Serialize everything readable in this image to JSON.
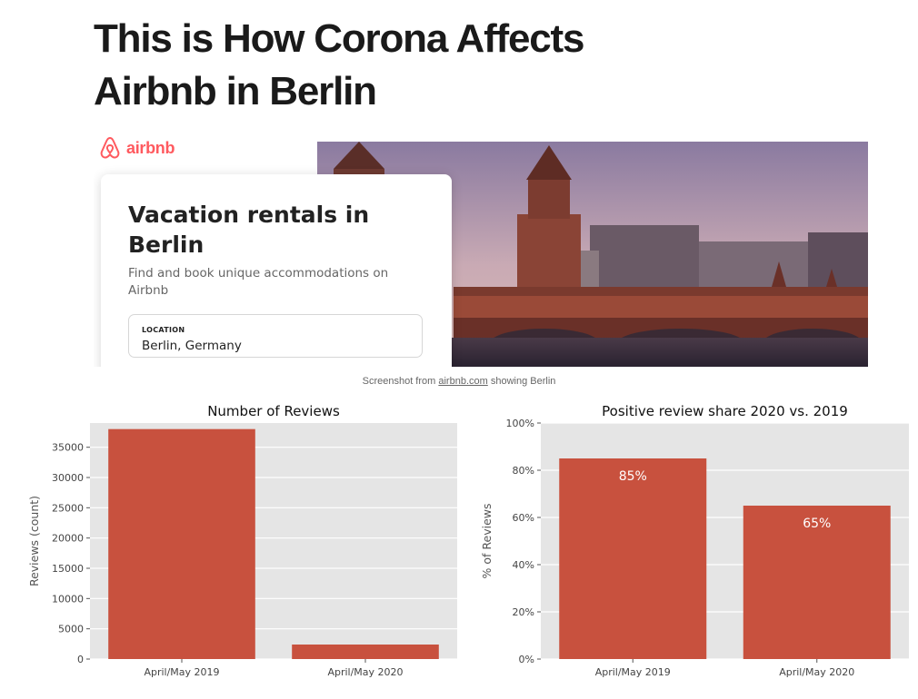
{
  "article": {
    "title_line1": "This is How Corona Affects",
    "title_line2": "Airbnb in Berlin"
  },
  "screenshot": {
    "logo_icon": "airbnb-belo-logo",
    "logo_text": "airbnb",
    "brand_color": "#ff5a5f",
    "card_title_line1": "Vacation rentals in",
    "card_title_line2": "Berlin",
    "card_subtitle_line1": "Find and book unique accommodations on",
    "card_subtitle_line2": "Airbnb",
    "location_label": "LOCATION",
    "location_value": "Berlin, Germany"
  },
  "caption": {
    "prefix": "Screenshot from ",
    "link": "airbnb.com",
    "suffix": " showing Berlin"
  },
  "colors": {
    "bar": "#c8513e",
    "plot_bg": "#e5e5e5",
    "grid": "#ffffff"
  },
  "chart_data": [
    {
      "type": "bar",
      "title": "Number of Reviews",
      "xlabel": "",
      "ylabel": "Reviews (count)",
      "categories": [
        "April/May 2019",
        "April/May 2020"
      ],
      "values": [
        38000,
        2400
      ],
      "ylim": [
        0,
        39000
      ],
      "yticks": [
        0,
        5000,
        10000,
        15000,
        20000,
        25000,
        30000,
        35000
      ],
      "ytick_labels": [
        "0",
        "5000",
        "10000",
        "15000",
        "20000",
        "25000",
        "30000",
        "35000"
      ],
      "grid": true,
      "legend": "none"
    },
    {
      "type": "bar",
      "title": "Positive review share 2020 vs. 2019",
      "xlabel": "",
      "ylabel": "% of Reviews",
      "categories": [
        "April/May 2019",
        "April/May 2020"
      ],
      "values": [
        85,
        65
      ],
      "data_labels": [
        "85%",
        "65%"
      ],
      "ylim": [
        0,
        100
      ],
      "yticks": [
        0,
        20,
        40,
        60,
        80,
        100
      ],
      "ytick_labels": [
        "0%",
        "20%",
        "40%",
        "60%",
        "80%",
        "100%"
      ],
      "grid": true,
      "legend": "none"
    }
  ]
}
